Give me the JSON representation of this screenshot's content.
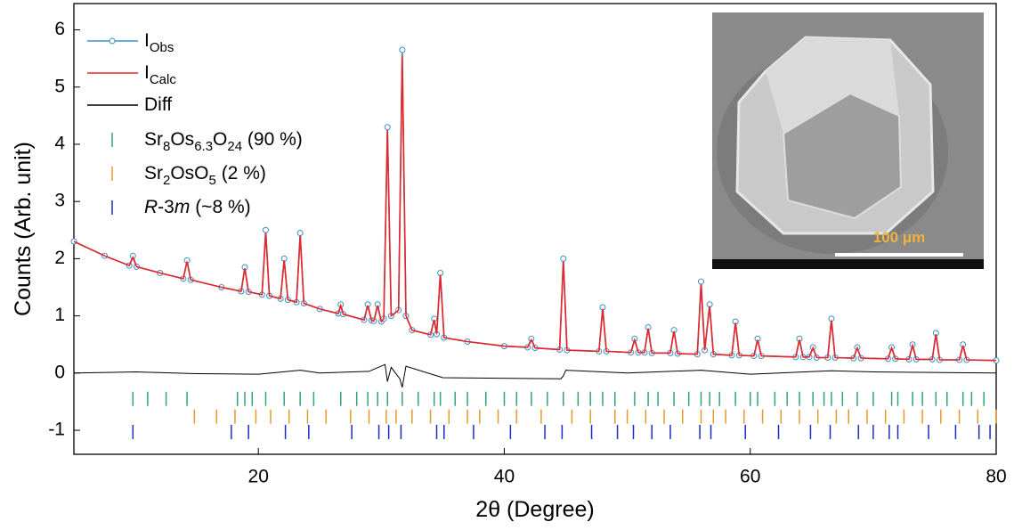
{
  "chart_data": {
    "type": "line",
    "x_label": "2θ (Degree)",
    "y_label": "Counts (Arb. unit)",
    "xlim": [
      5,
      80
    ],
    "ylim": [
      -1.42,
      6.46
    ],
    "xticks": [
      20,
      40,
      60,
      80
    ],
    "yticks": [
      -1,
      0,
      1,
      2,
      3,
      4,
      5,
      6
    ],
    "legend": "upper left",
    "series": [
      {
        "name": [
          {
            "text": "I"
          },
          {
            "text": "Obs",
            "sub": true
          }
        ],
        "color": "#3d8fc6",
        "marker": "circle",
        "x": [
          5,
          7.5,
          9.5,
          9.8,
          10.1,
          12,
          13.9,
          14.2,
          14.5,
          17,
          18.6,
          18.9,
          19.2,
          20.3,
          20.6,
          20.9,
          21.8,
          22.1,
          22.4,
          23.1,
          23.4,
          23.7,
          25,
          26.5,
          26.7,
          26.9,
          28.6,
          28.9,
          29.2,
          29.4,
          29.7,
          30.0,
          30.2,
          30.5,
          30.8,
          31.4,
          31.7,
          32.0,
          32.5,
          34.0,
          34.3,
          34.5,
          34.8,
          35.1,
          37,
          40,
          41.9,
          42.2,
          42.5,
          44.5,
          44.8,
          45.1,
          47.7,
          48.0,
          48.3,
          50.3,
          50.6,
          50.9,
          51.4,
          51.7,
          52.0,
          53.5,
          53.8,
          54.1,
          55.7,
          56.0,
          56.3,
          56.7,
          57.0,
          58.5,
          58.8,
          59.1,
          60.3,
          60.6,
          60.9,
          63.7,
          64.0,
          64.3,
          64.8,
          65.1,
          65.4,
          66.3,
          66.6,
          66.9,
          68.4,
          68.7,
          69.0,
          71.2,
          71.5,
          71.8,
          72.9,
          73.2,
          73.5,
          74.8,
          75.1,
          75.4,
          77.0,
          77.3,
          77.6,
          80
        ],
        "values": [
          2.3,
          2.05,
          1.88,
          2.05,
          1.86,
          1.75,
          1.65,
          1.97,
          1.63,
          1.5,
          1.43,
          1.85,
          1.42,
          1.37,
          2.5,
          1.35,
          1.3,
          2.0,
          1.28,
          1.24,
          2.45,
          1.22,
          1.12,
          1.04,
          1.2,
          1.03,
          0.93,
          1.2,
          0.92,
          0.91,
          1.2,
          0.9,
          0.95,
          4.3,
          1.0,
          1.1,
          5.65,
          1.0,
          0.75,
          0.67,
          0.95,
          0.68,
          1.75,
          0.62,
          0.55,
          0.47,
          0.45,
          0.6,
          0.44,
          0.41,
          2.0,
          0.4,
          0.38,
          1.15,
          0.38,
          0.36,
          0.6,
          0.36,
          0.36,
          0.8,
          0.35,
          0.35,
          0.75,
          0.34,
          0.33,
          1.6,
          0.4,
          1.2,
          0.33,
          0.31,
          0.9,
          0.31,
          0.3,
          0.6,
          0.3,
          0.28,
          0.6,
          0.28,
          0.28,
          0.45,
          0.27,
          0.27,
          0.95,
          0.27,
          0.26,
          0.45,
          0.26,
          0.25,
          0.45,
          0.25,
          0.24,
          0.5,
          0.24,
          0.24,
          0.7,
          0.23,
          0.23,
          0.5,
          0.23,
          0.22
        ]
      },
      {
        "name": [
          {
            "text": "I"
          },
          {
            "text": "Calc",
            "sub": true
          }
        ],
        "color": "#e8262a",
        "x": [
          5,
          7.5,
          9.5,
          9.8,
          10.1,
          12,
          13.9,
          14.2,
          14.5,
          17,
          18.6,
          18.9,
          19.2,
          20.3,
          20.6,
          20.9,
          21.8,
          22.1,
          22.4,
          23.1,
          23.4,
          23.7,
          25,
          26.5,
          26.7,
          26.9,
          28.6,
          28.9,
          29.2,
          29.4,
          29.7,
          30.0,
          30.2,
          30.5,
          30.8,
          31.4,
          31.7,
          32.0,
          32.5,
          34.0,
          34.3,
          34.5,
          34.8,
          35.1,
          37,
          40,
          41.9,
          42.2,
          42.5,
          44.5,
          44.8,
          45.1,
          47.7,
          48.0,
          48.3,
          50.3,
          50.6,
          50.9,
          51.4,
          51.7,
          52.0,
          53.5,
          53.8,
          54.1,
          55.7,
          56.0,
          56.3,
          56.7,
          57.0,
          58.5,
          58.8,
          59.1,
          60.3,
          60.6,
          60.9,
          63.7,
          64.0,
          64.3,
          64.8,
          65.1,
          65.4,
          66.3,
          66.6,
          66.9,
          68.4,
          68.7,
          69.0,
          71.2,
          71.5,
          71.8,
          72.9,
          73.2,
          73.5,
          74.8,
          75.1,
          75.4,
          77.0,
          77.3,
          77.6,
          80
        ],
        "values": [
          2.3,
          2.05,
          1.88,
          2.02,
          1.86,
          1.75,
          1.65,
          1.95,
          1.63,
          1.5,
          1.43,
          1.83,
          1.42,
          1.37,
          2.45,
          1.35,
          1.3,
          1.97,
          1.28,
          1.24,
          2.4,
          1.22,
          1.12,
          1.04,
          1.18,
          1.03,
          0.93,
          1.18,
          0.92,
          0.91,
          1.18,
          0.9,
          0.95,
          4.25,
          1.0,
          1.1,
          5.55,
          1.0,
          0.75,
          0.67,
          0.93,
          0.68,
          1.72,
          0.62,
          0.55,
          0.47,
          0.45,
          0.58,
          0.44,
          0.41,
          1.95,
          0.4,
          0.38,
          1.12,
          0.38,
          0.36,
          0.58,
          0.36,
          0.36,
          0.78,
          0.35,
          0.35,
          0.73,
          0.34,
          0.33,
          1.55,
          0.4,
          1.17,
          0.33,
          0.31,
          0.88,
          0.31,
          0.3,
          0.58,
          0.3,
          0.28,
          0.58,
          0.28,
          0.28,
          0.44,
          0.27,
          0.27,
          0.92,
          0.27,
          0.26,
          0.44,
          0.26,
          0.25,
          0.44,
          0.25,
          0.24,
          0.48,
          0.24,
          0.24,
          0.68,
          0.23,
          0.23,
          0.48,
          0.23,
          0.22
        ]
      },
      {
        "name": [
          {
            "text": "Diff"
          }
        ],
        "color": "#000000",
        "x": [
          5,
          10,
          15,
          20,
          23.4,
          25,
          29,
          30.3,
          30.5,
          30.8,
          31.5,
          31.7,
          32,
          35,
          44.6,
          44.8,
          45,
          50,
          56,
          60,
          66.6,
          70,
          80
        ],
        "values": [
          0,
          0.02,
          -0.01,
          -0.02,
          0.05,
          0,
          0.03,
          0.15,
          -0.15,
          0.1,
          -0.1,
          -0.25,
          0.12,
          -0.08,
          -0.1,
          -0.05,
          0.05,
          0,
          0.05,
          -0.02,
          0.04,
          0.02,
          0
        ]
      }
    ],
    "reflections": [
      {
        "name": [
          {
            "text": "Sr"
          },
          {
            "text": "8",
            "sub": true
          },
          {
            "text": "Os"
          },
          {
            "text": "6.3",
            "sub": true
          },
          {
            "text": "O"
          },
          {
            "text": "24",
            "sub": true
          },
          {
            "text": " (90 %)"
          }
        ],
        "color": "#2fa57a",
        "offset": -0.45,
        "positions": [
          9.8,
          11,
          12.5,
          14.2,
          18.3,
          18.9,
          19.5,
          20.6,
          22.1,
          23.4,
          24.5,
          26.7,
          28,
          28.9,
          29.7,
          30.5,
          31.7,
          33,
          34.3,
          34.8,
          36,
          37,
          38.5,
          40,
          41,
          42.2,
          43.5,
          44.8,
          46,
          47,
          48,
          49,
          50.6,
          51.7,
          52.5,
          53.8,
          55,
          56,
          56.7,
          57.5,
          58.8,
          60,
          60.6,
          62,
          63,
          64,
          65.1,
          66,
          66.6,
          67.5,
          68.7,
          70,
          71.5,
          72,
          73.2,
          74,
          75.1,
          76,
          77.3,
          78,
          79
        ]
      },
      {
        "name": [
          {
            "text": "Sr"
          },
          {
            "text": "2",
            "sub": true
          },
          {
            "text": "OsO"
          },
          {
            "text": "5",
            "sub": true
          },
          {
            "text": " (2 %)"
          }
        ],
        "color": "#e69a2a",
        "offset": -0.76,
        "positions": [
          14.8,
          16.6,
          18.1,
          19.8,
          21,
          22.5,
          24,
          25.5,
          27.5,
          29,
          30.4,
          31.2,
          32.5,
          34,
          35.5,
          37,
          38,
          39.5,
          41,
          43,
          45.5,
          47,
          49,
          50,
          51.5,
          53,
          54.5,
          56,
          57,
          58,
          59.5,
          61,
          62.5,
          64,
          65.5,
          67,
          68,
          69.5,
          71,
          72.5,
          74,
          75.5,
          77,
          78.5,
          80
        ]
      },
      {
        "name": [
          {
            "text": "R",
            "italic": true
          },
          {
            "text": "-3"
          },
          {
            "text": "m",
            "italic": true
          },
          {
            "text": " (~8 %)"
          }
        ],
        "color": "#1c2bbf",
        "offset": -1.03,
        "positions": [
          9.8,
          17.8,
          19.2,
          22.2,
          24.1,
          27.6,
          29.8,
          30.6,
          31.6,
          34.5,
          35.1,
          37.5,
          40.5,
          43.3,
          44.7,
          47.1,
          49.2,
          50.5,
          52,
          53.5,
          55.9,
          56.8,
          59.6,
          62.3,
          64.9,
          66.5,
          68.8,
          70,
          71.3,
          72,
          74.5,
          76.7,
          78.6,
          79.5
        ]
      }
    ]
  },
  "inset": {
    "scale_label": "100 μm"
  }
}
